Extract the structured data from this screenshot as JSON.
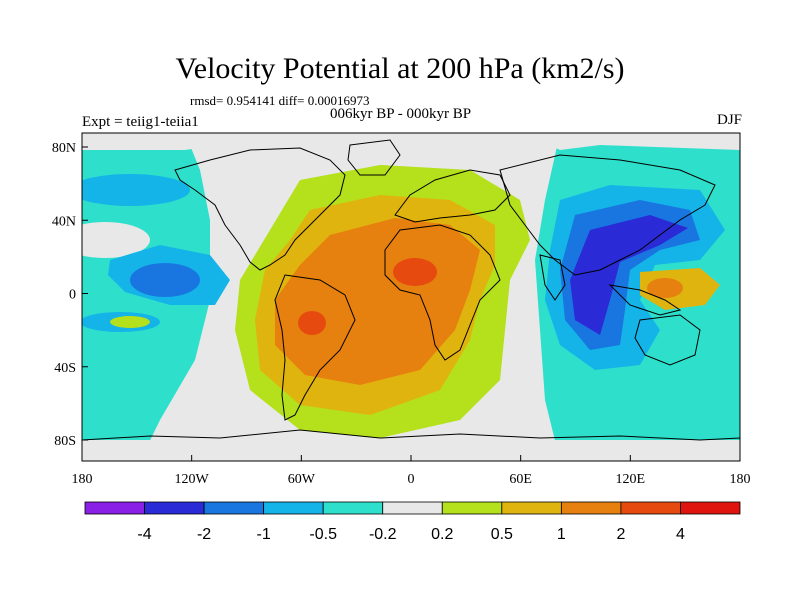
{
  "title": "Velocity Potential at 200 hPa (km2/s)",
  "stats": "rmsd= 0.954141 diff= 0.00016973",
  "period": "006kyr BP - 000kyr BP",
  "experiment": "Expt = teiig1-teiia1",
  "season": "DJF",
  "x_ticks": [
    "180",
    "120W",
    "60W",
    "0",
    "60E",
    "120E",
    "180"
  ],
  "y_ticks": [
    "80N",
    "40N",
    "0",
    "40S",
    "80S"
  ],
  "colorbar": {
    "labels": [
      "-4",
      "-2",
      "-1",
      "-0.5",
      "-0.2",
      "0.2",
      "0.5",
      "1",
      "2",
      "4"
    ],
    "colors": [
      "#8a1fe6",
      "#2a2ad6",
      "#1976e0",
      "#14b4e8",
      "#2ee0cc",
      "#e8e8e8",
      "#b4e01c",
      "#e0b40e",
      "#e6800e",
      "#e64a0e",
      "#e0140e"
    ]
  },
  "colors": {
    "neutral": "#e8e8e8",
    "cyan": "#2ee0cc",
    "lightblue": "#14b4e8",
    "blue": "#1976e0",
    "darkblue": "#2a2ad6",
    "yellowgreen": "#b4e01c",
    "gold": "#e0b40e",
    "orange": "#e6800e",
    "redorange": "#e64a0e"
  }
}
